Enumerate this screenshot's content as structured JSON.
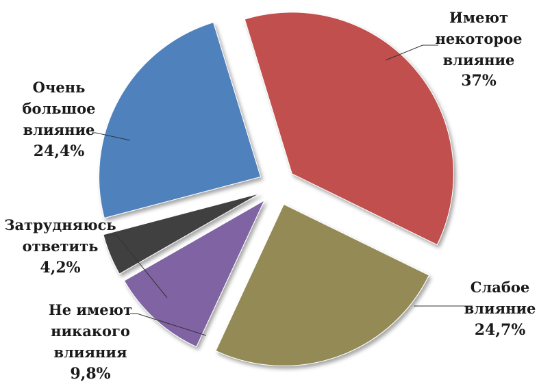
{
  "chart_data": {
    "type": "pie",
    "exploded": true,
    "slices": [
      {
        "label": [
          "Имеют",
          "некоторое",
          "влияние"
        ],
        "value": 37,
        "value_label": "37%",
        "color": "#c0504d"
      },
      {
        "label": [
          "Слабое",
          "влияние"
        ],
        "value": 24.7,
        "value_label": "24,7%",
        "color": "#948a54"
      },
      {
        "label": [
          "Не имеют",
          "никакого",
          "влияния"
        ],
        "value": 9.8,
        "value_label": "9,8%",
        "color": "#8064a2"
      },
      {
        "label": [
          "Затрудняюсь",
          "ответить"
        ],
        "value": 4.2,
        "value_label": "4,2%",
        "color": "#404040"
      },
      {
        "label": [
          "Очень",
          "большое",
          "влияние"
        ],
        "value": 24.4,
        "value_label": "24,4%",
        "color": "#4f81bd"
      }
    ]
  }
}
